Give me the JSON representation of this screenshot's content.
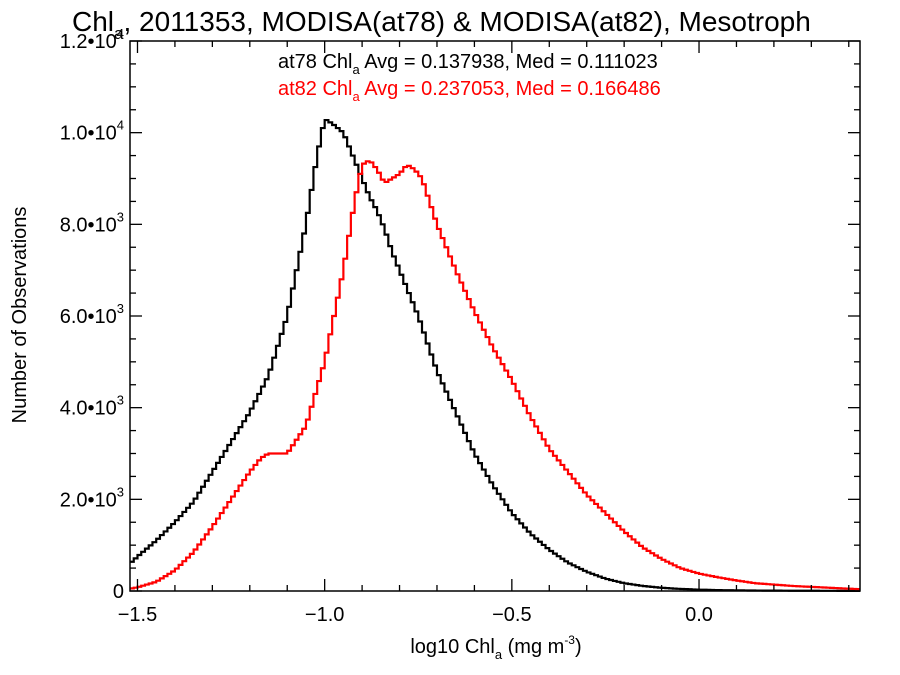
{
  "colors": {
    "background": "#ffffff",
    "axis": "#000000",
    "at78": "#000000",
    "at82": "#ff0000"
  },
  "chart_data": {
    "type": "line",
    "step": true,
    "title": "Chl_a, 2011353, MODISA(at78) & MODISA(at82), Mesotroph",
    "title_parts": {
      "prefix": "Chl",
      "sub": "a",
      "rest": ", 2011353, MODISA(at78) & MODISA(at82), Mesotroph"
    },
    "xlabel": "log10 Chl_a (mg m^-3)",
    "xlabel_parts": {
      "prefix": "log10 Chl",
      "sub": "a",
      "mid": " (mg m",
      "sup": "-3",
      "suffix": ")"
    },
    "ylabel": "Number of Observations",
    "xlim": [
      -1.52,
      0.43
    ],
    "ylim": [
      0,
      12000
    ],
    "grid": false,
    "x_ticks": [
      {
        "value": -1.5,
        "label": "−1.5"
      },
      {
        "value": -1.0,
        "label": "−1.0"
      },
      {
        "value": -0.5,
        "label": "−0.5"
      },
      {
        "value": 0.0,
        "label": "0.0"
      }
    ],
    "x_minor_step": 0.1,
    "y_ticks": [
      {
        "value": 0,
        "mant": "0",
        "exp": ""
      },
      {
        "value": 2000,
        "mant": "2.0•10",
        "exp": "3"
      },
      {
        "value": 4000,
        "mant": "4.0•10",
        "exp": "3"
      },
      {
        "value": 6000,
        "mant": "6.0•10",
        "exp": "3"
      },
      {
        "value": 8000,
        "mant": "8.0•10",
        "exp": "3"
      },
      {
        "value": 10000,
        "mant": "1.0•10",
        "exp": "4"
      },
      {
        "value": 12000,
        "mant": "1.2•10",
        "exp": "4"
      }
    ],
    "y_minor_step": 500,
    "legend": [
      {
        "series": "at78",
        "prefix": "at78 Chl",
        "sub": "a",
        "rest": " Avg = 0.137938, Med = 0.111023"
      },
      {
        "series": "at82",
        "prefix": "at82 Chl",
        "sub": "a",
        "rest": " Avg = 0.237053, Med = 0.166486"
      }
    ],
    "series": [
      {
        "name": "at78",
        "x": [
          -1.52,
          -1.5,
          -1.45,
          -1.4,
          -1.35,
          -1.3,
          -1.25,
          -1.2,
          -1.15,
          -1.1,
          -1.05,
          -1.02,
          -1.0,
          -0.98,
          -0.95,
          -0.92,
          -0.9,
          -0.88,
          -0.86,
          -0.84,
          -0.82,
          -0.8,
          -0.75,
          -0.7,
          -0.65,
          -0.6,
          -0.55,
          -0.5,
          -0.45,
          -0.4,
          -0.35,
          -0.3,
          -0.25,
          -0.2,
          -0.15,
          -0.1,
          -0.05,
          0.0,
          0.05,
          0.1,
          0.15,
          0.2,
          0.25,
          0.3,
          0.35,
          0.4,
          0.43
        ],
        "y": [
          600,
          750,
          1100,
          1500,
          1950,
          2600,
          3250,
          3900,
          4700,
          6000,
          8000,
          9500,
          10300,
          10200,
          10000,
          9400,
          9000,
          8600,
          8300,
          7900,
          7400,
          7000,
          6000,
          4800,
          3900,
          3000,
          2300,
          1700,
          1250,
          900,
          620,
          420,
          270,
          170,
          110,
          70,
          45,
          30,
          20,
          14,
          10,
          8,
          6,
          5,
          4,
          3,
          3
        ]
      },
      {
        "name": "at82",
        "x": [
          -1.52,
          -1.5,
          -1.45,
          -1.4,
          -1.35,
          -1.3,
          -1.25,
          -1.2,
          -1.17,
          -1.15,
          -1.12,
          -1.1,
          -1.05,
          -1.0,
          -0.95,
          -0.92,
          -0.9,
          -0.88,
          -0.86,
          -0.84,
          -0.82,
          -0.8,
          -0.78,
          -0.76,
          -0.74,
          -0.72,
          -0.7,
          -0.65,
          -0.6,
          -0.55,
          -0.5,
          -0.45,
          -0.4,
          -0.35,
          -0.3,
          -0.25,
          -0.2,
          -0.15,
          -0.1,
          -0.05,
          0.0,
          0.05,
          0.1,
          0.15,
          0.2,
          0.25,
          0.3,
          0.35,
          0.4,
          0.43
        ],
        "y": [
          50,
          80,
          200,
          450,
          850,
          1400,
          2000,
          2600,
          2900,
          3000,
          3000,
          3000,
          3600,
          5000,
          7000,
          8500,
          9300,
          9400,
          9200,
          8900,
          9000,
          9100,
          9300,
          9200,
          9000,
          8500,
          8000,
          7000,
          6100,
          5300,
          4600,
          3800,
          3100,
          2600,
          2100,
          1700,
          1300,
          950,
          700,
          500,
          380,
          300,
          230,
          170,
          140,
          110,
          90,
          70,
          50,
          40
        ]
      }
    ]
  }
}
